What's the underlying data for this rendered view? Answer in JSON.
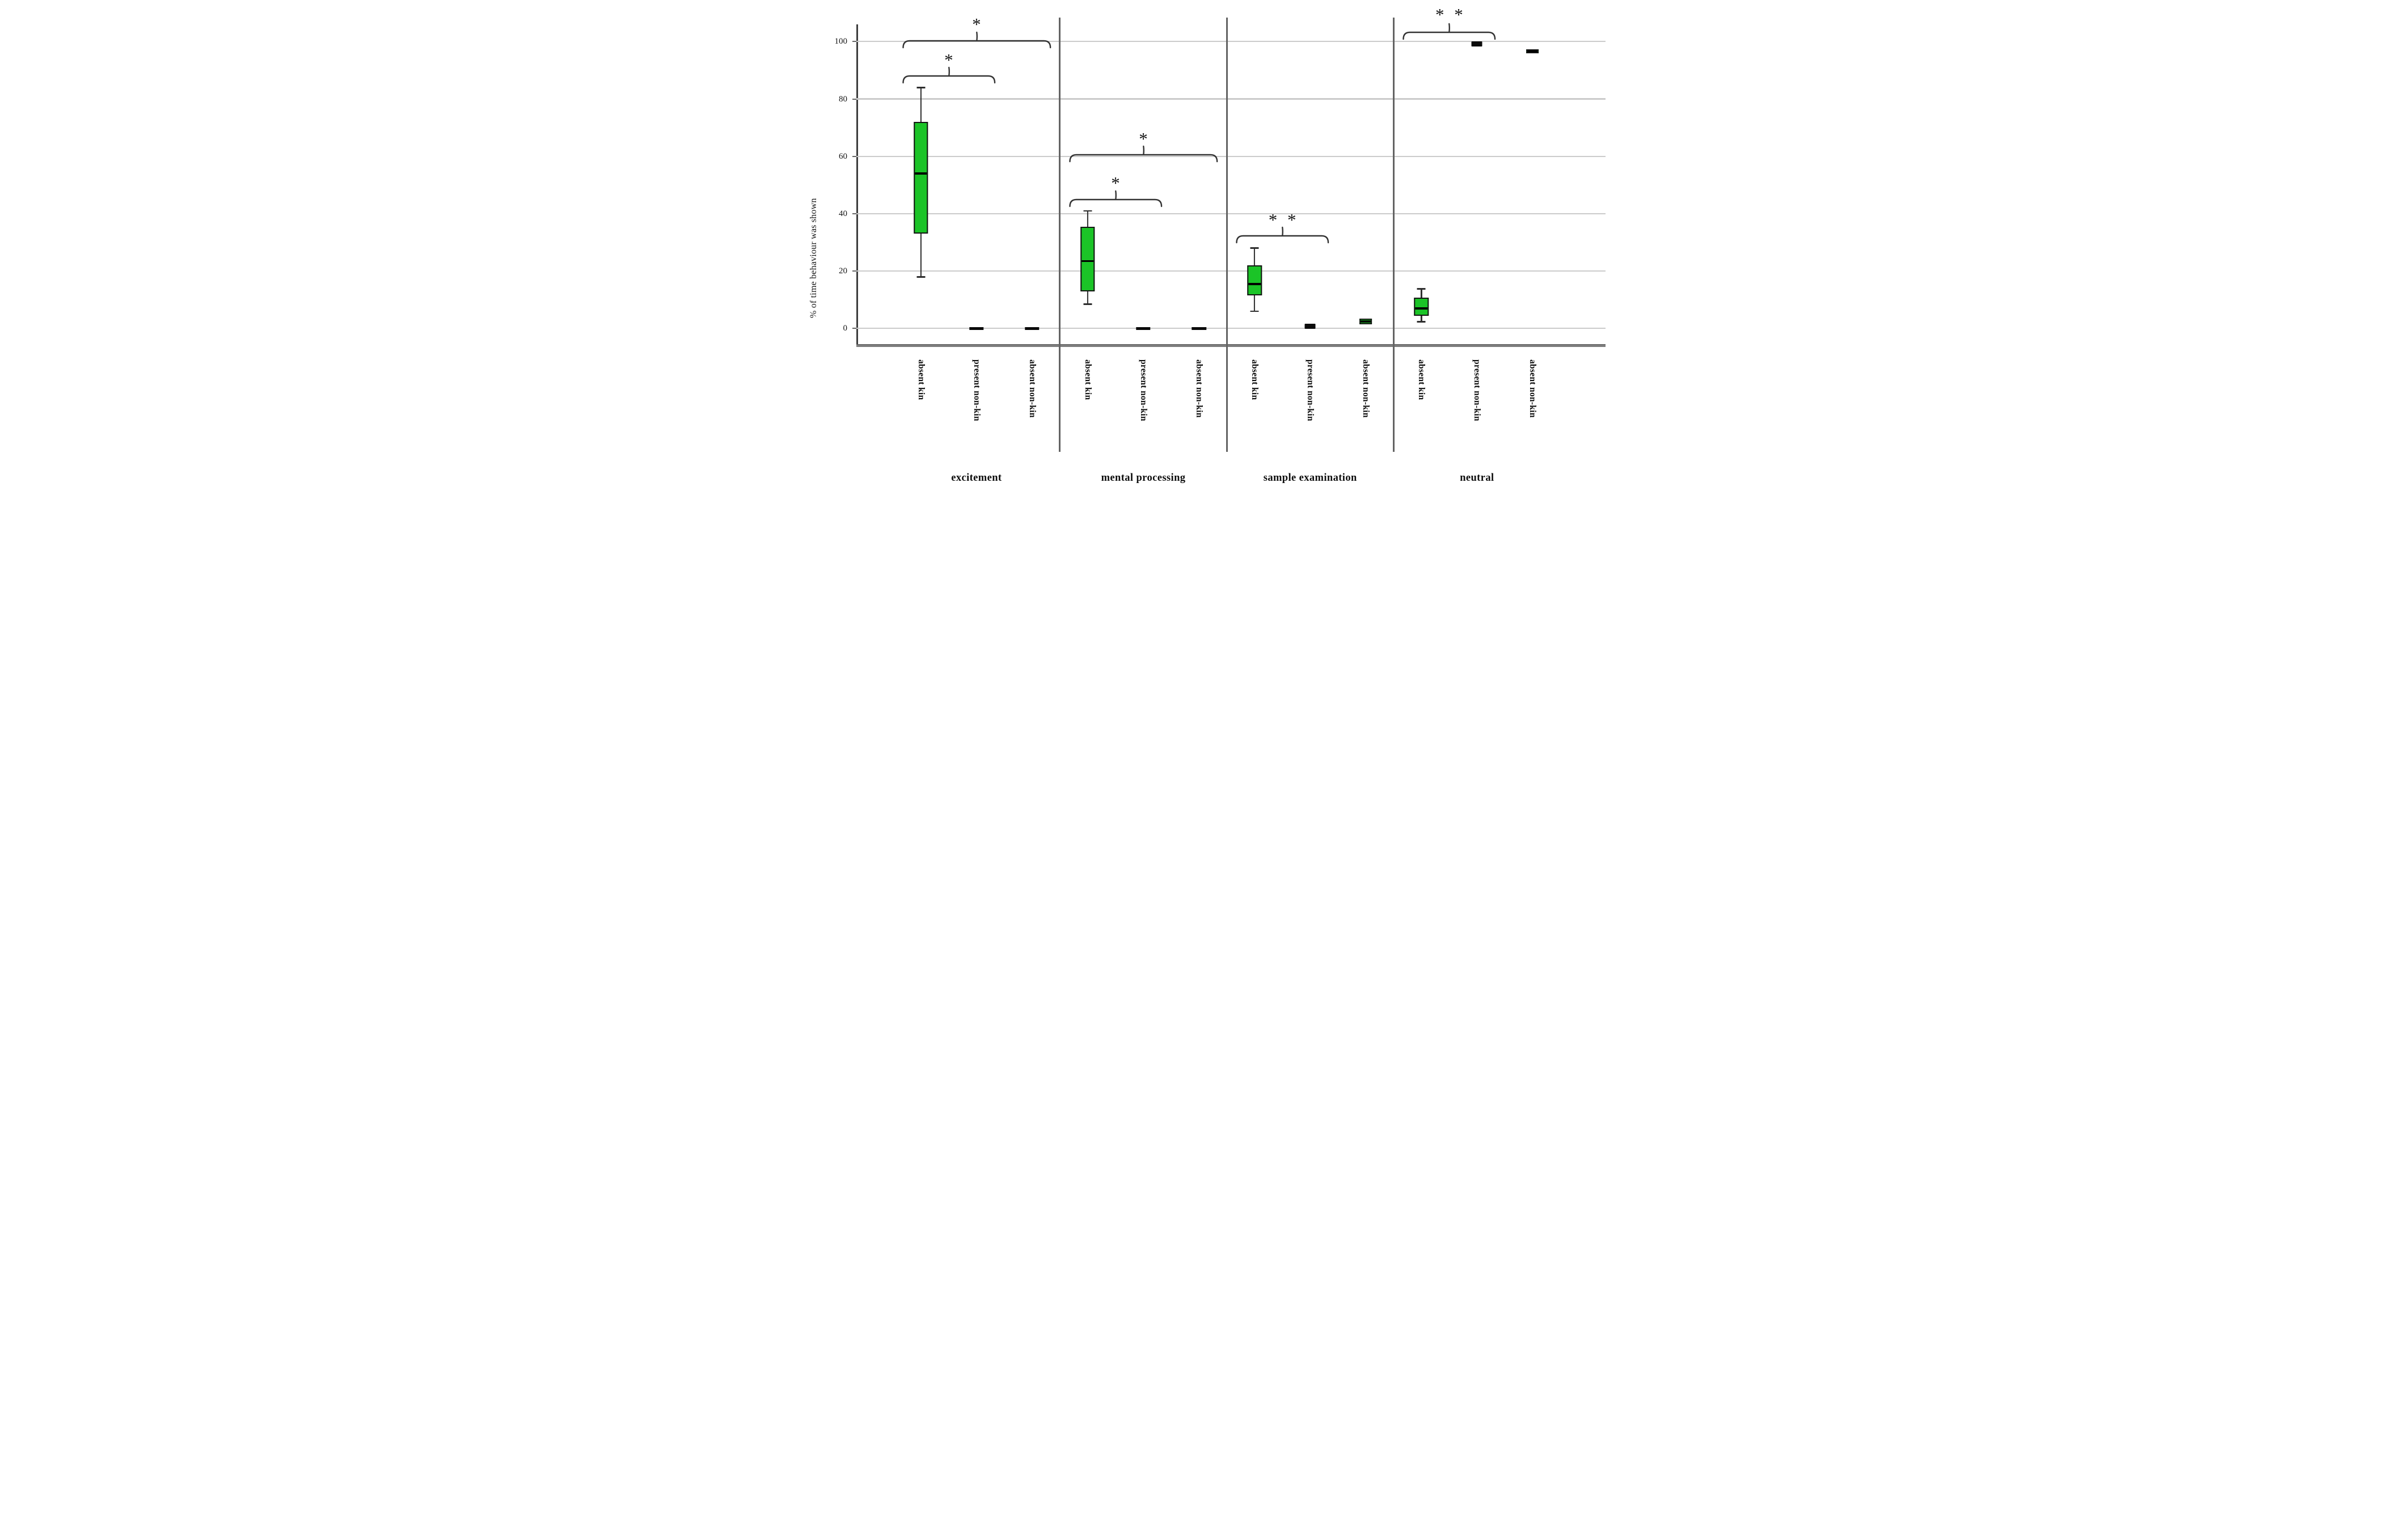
{
  "chart_data": {
    "type": "box",
    "title": "",
    "ylabel": "% of time behaviour was shown",
    "xlabel": "",
    "y_ticks": [
      0,
      20,
      40,
      60,
      80,
      100
    ],
    "ylim": [
      -6,
      114
    ],
    "grid": "horizontal",
    "legend": "none",
    "groups": [
      {
        "label": "excitement",
        "boxes": [
          {
            "condition": "absent kin",
            "type": "box",
            "whisker_low": 18,
            "q1": 33,
            "median": 54,
            "q3": 72,
            "whisker_high": 84,
            "fill": "green"
          },
          {
            "condition": "present non-kin",
            "type": "dash",
            "value": 0
          },
          {
            "condition": "absent non-kin",
            "type": "dash",
            "value": 0
          }
        ]
      },
      {
        "label": "mental processing",
        "boxes": [
          {
            "condition": "absent kin",
            "type": "box",
            "whisker_low": 8.5,
            "q1": 13,
            "median": 23.5,
            "q3": 35.5,
            "whisker_high": 41,
            "fill": "green"
          },
          {
            "condition": "present non-kin",
            "type": "dash",
            "value": 0
          },
          {
            "condition": "absent non-kin",
            "type": "dash",
            "value": 0
          }
        ]
      },
      {
        "label": "sample examination",
        "boxes": [
          {
            "condition": "absent kin",
            "type": "box",
            "whisker_low": 6,
            "q1": 11.5,
            "median": 15.5,
            "q3": 22,
            "whisker_high": 28,
            "fill": "green"
          },
          {
            "condition": "present non-kin",
            "type": "tiny",
            "q1": 0.2,
            "median": 0.75,
            "q3": 1.3,
            "fill": "dark"
          },
          {
            "condition": "absent non-kin",
            "type": "box",
            "q1": 1.5,
            "median": 2.4,
            "q3": 3.4,
            "fill": "green"
          }
        ]
      },
      {
        "label": "neutral",
        "boxes": [
          {
            "condition": "absent kin",
            "type": "box",
            "whisker_low": 2.3,
            "q1": 4.5,
            "median": 7,
            "q3": 10.8,
            "whisker_high": 13.8,
            "fill": "green"
          },
          {
            "condition": "present non-kin",
            "type": "tiny",
            "q1": 98.6,
            "median": 99.2,
            "q3": 99.7,
            "fill": "dark"
          },
          {
            "condition": "absent non-kin",
            "type": "box",
            "q1": 95.9,
            "median": 96.7,
            "q3": 97.3,
            "fill": "green"
          }
        ]
      }
    ],
    "significance_brackets": [
      {
        "group": 0,
        "from_box": 0,
        "to_box": 2,
        "y": 100.3,
        "label_y": 107.2,
        "label": "*"
      },
      {
        "group": 0,
        "from_box": 0,
        "to_box": 1,
        "y": 88,
        "label_y": 94.8,
        "label": "*"
      },
      {
        "group": 1,
        "from_box": 0,
        "to_box": 2,
        "y": 60.5,
        "label_y": 67.3,
        "label": "*"
      },
      {
        "group": 1,
        "from_box": 0,
        "to_box": 1,
        "y": 45,
        "label_y": 51.8,
        "label": "*"
      },
      {
        "group": 2,
        "from_box": 0,
        "to_box": 1,
        "y": 32.3,
        "label_y": 39,
        "label": "* *"
      },
      {
        "group": 3,
        "from_box": 0,
        "to_box": 1,
        "y": 103.2,
        "label_y": 110.6,
        "label": "* *"
      }
    ],
    "colors": {
      "box_fill_green": "#1bc427",
      "box_border": "#141414",
      "median": "#000000",
      "whisker": "#2d2d2d",
      "zero_dash": "#0a0a0a",
      "tiny_dark_box": "#0c0c0c",
      "gridline": "#cbcbcb",
      "y_axis_line": "#3d3d3d",
      "baseline": "#7d7d7d",
      "separator": "#646464",
      "bracket": "#333333",
      "text": "#111111",
      "background": "#ffffff"
    }
  }
}
